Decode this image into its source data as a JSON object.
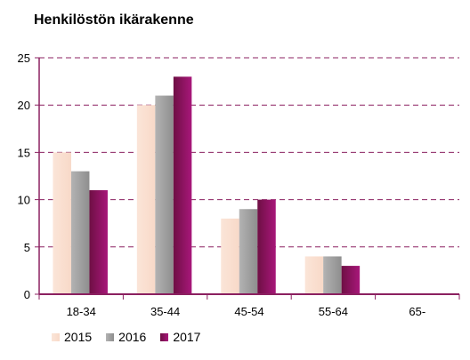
{
  "chart_data": {
    "type": "bar",
    "title": "Henkilöstön ikärakenne",
    "categories": [
      "18-34",
      "35-44",
      "45-54",
      "55-64",
      "65-"
    ],
    "series": [
      {
        "name": "2015",
        "values": [
          15,
          20,
          8,
          4,
          0
        ],
        "color": "#fbe5d8",
        "gradient_to": "#f8d9c8"
      },
      {
        "name": "2016",
        "values": [
          13,
          21,
          9,
          4,
          0
        ],
        "color": "#b3b3b3",
        "gradient_to": "#8e8e8e"
      },
      {
        "name": "2017",
        "values": [
          11,
          23,
          10,
          3,
          0
        ],
        "color": "#6e0f44",
        "gradient_to": "#a8177a"
      }
    ],
    "ylim": [
      0,
      25
    ],
    "yticks": [
      0,
      5,
      10,
      15,
      20,
      25
    ],
    "grid": true,
    "grid_color": "#8b2060",
    "axis_color": "#8b2060",
    "legend_position": "bottom-left"
  }
}
